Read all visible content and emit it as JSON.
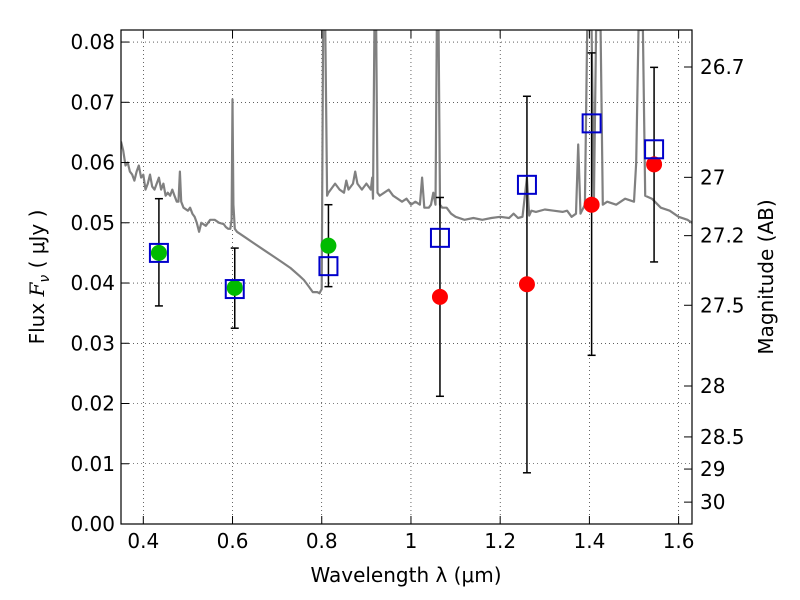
{
  "chart_data": {
    "type": "scatter",
    "xlabel": "Wavelength  λ (μm)",
    "ylabel_prefix": "Flux  ",
    "ylabel_symbol": "F",
    "ylabel_sub": "ν",
    "ylabel_unit": "  ( μJy )",
    "y2label": "Magnitude (AB)",
    "xlim": [
      0.35,
      1.63
    ],
    "ylim": [
      0.0,
      0.082
    ],
    "grid": true,
    "x_ticks": [
      {
        "value": 0.4,
        "label": "0.4"
      },
      {
        "value": 0.6,
        "label": "0.6"
      },
      {
        "value": 0.8,
        "label": "0.8"
      },
      {
        "value": 1.0,
        "label": "1"
      },
      {
        "value": 1.2,
        "label": "1.2"
      },
      {
        "value": 1.4,
        "label": "1.4"
      },
      {
        "value": 1.6,
        "label": "1.6"
      }
    ],
    "y_ticks": [
      {
        "value": 0.0,
        "label": "0.00"
      },
      {
        "value": 0.01,
        "label": "0.01"
      },
      {
        "value": 0.02,
        "label": "0.02"
      },
      {
        "value": 0.03,
        "label": "0.03"
      },
      {
        "value": 0.04,
        "label": "0.04"
      },
      {
        "value": 0.05,
        "label": "0.05"
      },
      {
        "value": 0.06,
        "label": "0.06"
      },
      {
        "value": 0.07,
        "label": "0.07"
      },
      {
        "value": 0.08,
        "label": "0.08"
      }
    ],
    "y2_ticks": [
      {
        "mag": 26.7,
        "label": "26.7"
      },
      {
        "mag": 27.0,
        "label": "27"
      },
      {
        "mag": 27.2,
        "label": "27.2"
      },
      {
        "mag": 27.5,
        "label": "27.5"
      },
      {
        "mag": 28.0,
        "label": "28"
      },
      {
        "mag": 28.5,
        "label": "28.5"
      },
      {
        "mag": 29.0,
        "label": "29"
      },
      {
        "mag": 30.0,
        "label": "30"
      }
    ],
    "model_spectrum": {
      "name": "SED model",
      "color": "#808080",
      "points": [
        [
          0.35,
          0.0635
        ],
        [
          0.355,
          0.062
        ],
        [
          0.36,
          0.0595
        ],
        [
          0.365,
          0.06
        ],
        [
          0.37,
          0.0585
        ],
        [
          0.375,
          0.058
        ],
        [
          0.38,
          0.057
        ],
        [
          0.385,
          0.0585
        ],
        [
          0.39,
          0.0595
        ],
        [
          0.395,
          0.0575
        ],
        [
          0.4,
          0.058
        ],
        [
          0.405,
          0.0555
        ],
        [
          0.41,
          0.0565
        ],
        [
          0.415,
          0.058
        ],
        [
          0.42,
          0.056
        ],
        [
          0.425,
          0.0555
        ],
        [
          0.43,
          0.0565
        ],
        [
          0.435,
          0.0575
        ],
        [
          0.44,
          0.0555
        ],
        [
          0.445,
          0.0565
        ],
        [
          0.45,
          0.0545
        ],
        [
          0.455,
          0.055
        ],
        [
          0.46,
          0.0545
        ],
        [
          0.465,
          0.0555
        ],
        [
          0.47,
          0.0545
        ],
        [
          0.475,
          0.0535
        ],
        [
          0.479,
          0.0535
        ],
        [
          0.482,
          0.0585
        ],
        [
          0.485,
          0.0535
        ],
        [
          0.49,
          0.0525
        ],
        [
          0.5,
          0.052
        ],
        [
          0.505,
          0.0525
        ],
        [
          0.51,
          0.0515
        ],
        [
          0.515,
          0.051
        ],
        [
          0.52,
          0.05
        ],
        [
          0.525,
          0.0485
        ],
        [
          0.53,
          0.05
        ],
        [
          0.54,
          0.0495
        ],
        [
          0.55,
          0.0505
        ],
        [
          0.56,
          0.0505
        ],
        [
          0.57,
          0.05
        ],
        [
          0.58,
          0.0498
        ],
        [
          0.585,
          0.0493
        ],
        [
          0.59,
          0.049
        ],
        [
          0.595,
          0.049
        ],
        [
          0.598,
          0.0505
        ],
        [
          0.6,
          0.0705
        ],
        [
          0.602,
          0.053
        ],
        [
          0.605,
          0.049
        ],
        [
          0.61,
          0.0485
        ],
        [
          0.63,
          0.0475
        ],
        [
          0.65,
          0.0465
        ],
        [
          0.67,
          0.0455
        ],
        [
          0.69,
          0.0445
        ],
        [
          0.71,
          0.0435
        ],
        [
          0.73,
          0.0425
        ],
        [
          0.75,
          0.0412
        ],
        [
          0.76,
          0.0405
        ],
        [
          0.77,
          0.0395
        ],
        [
          0.78,
          0.0385
        ],
        [
          0.79,
          0.0385
        ],
        [
          0.795,
          0.0383
        ],
        [
          0.8,
          0.039
        ],
        [
          0.803,
          0.082
        ],
        [
          0.808,
          0.082
        ],
        [
          0.812,
          0.0545
        ],
        [
          0.815,
          0.055
        ],
        [
          0.82,
          0.0555
        ],
        [
          0.83,
          0.0565
        ],
        [
          0.84,
          0.0555
        ],
        [
          0.85,
          0.055
        ],
        [
          0.855,
          0.057
        ],
        [
          0.86,
          0.0555
        ],
        [
          0.87,
          0.0565
        ],
        [
          0.875,
          0.0585
        ],
        [
          0.88,
          0.0565
        ],
        [
          0.89,
          0.0555
        ],
        [
          0.9,
          0.0565
        ],
        [
          0.91,
          0.0555
        ],
        [
          0.913,
          0.0575
        ],
        [
          0.915,
          0.054
        ],
        [
          0.918,
          0.082
        ],
        [
          0.922,
          0.082
        ],
        [
          0.925,
          0.055
        ],
        [
          0.93,
          0.0545
        ],
        [
          0.94,
          0.055
        ],
        [
          0.95,
          0.0555
        ],
        [
          0.96,
          0.0545
        ],
        [
          0.97,
          0.054
        ],
        [
          0.98,
          0.0535
        ],
        [
          0.99,
          0.054
        ],
        [
          1.0,
          0.053
        ],
        [
          1.01,
          0.0535
        ],
        [
          1.02,
          0.053
        ],
        [
          1.025,
          0.0575
        ],
        [
          1.03,
          0.0525
        ],
        [
          1.04,
          0.0525
        ],
        [
          1.045,
          0.053
        ],
        [
          1.05,
          0.055
        ],
        [
          1.055,
          0.053
        ],
        [
          1.058,
          0.082
        ],
        [
          1.062,
          0.082
        ],
        [
          1.065,
          0.053
        ],
        [
          1.07,
          0.0525
        ],
        [
          1.08,
          0.0525
        ],
        [
          1.09,
          0.0515
        ],
        [
          1.1,
          0.051
        ],
        [
          1.12,
          0.0505
        ],
        [
          1.14,
          0.0508
        ],
        [
          1.16,
          0.0505
        ],
        [
          1.18,
          0.0508
        ],
        [
          1.2,
          0.051
        ],
        [
          1.22,
          0.0508
        ],
        [
          1.23,
          0.0515
        ],
        [
          1.24,
          0.0508
        ],
        [
          1.25,
          0.051
        ],
        [
          1.26,
          0.0575
        ],
        [
          1.265,
          0.0512
        ],
        [
          1.27,
          0.052
        ],
        [
          1.28,
          0.0518
        ],
        [
          1.3,
          0.0522
        ],
        [
          1.32,
          0.052
        ],
        [
          1.34,
          0.0518
        ],
        [
          1.35,
          0.052
        ],
        [
          1.36,
          0.051
        ],
        [
          1.37,
          0.0515
        ],
        [
          1.375,
          0.063
        ],
        [
          1.38,
          0.0515
        ],
        [
          1.39,
          0.053
        ],
        [
          1.395,
          0.082
        ],
        [
          1.405,
          0.082
        ],
        [
          1.41,
          0.0535
        ],
        [
          1.415,
          0.082
        ],
        [
          1.425,
          0.082
        ],
        [
          1.43,
          0.053
        ],
        [
          1.44,
          0.0535
        ],
        [
          1.46,
          0.053
        ],
        [
          1.48,
          0.054
        ],
        [
          1.5,
          0.0535
        ],
        [
          1.505,
          0.06
        ],
        [
          1.51,
          0.082
        ],
        [
          1.52,
          0.082
        ],
        [
          1.525,
          0.0545
        ],
        [
          1.54,
          0.054
        ],
        [
          1.56,
          0.0525
        ],
        [
          1.58,
          0.052
        ],
        [
          1.6,
          0.051
        ],
        [
          1.62,
          0.0505
        ],
        [
          1.63,
          0.05
        ]
      ]
    },
    "green_points": {
      "name": "detected photometry",
      "color": "#00bb00",
      "points": [
        {
          "x": 0.435,
          "y": 0.045,
          "err_low": 0.0362,
          "err_high": 0.054
        },
        {
          "x": 0.605,
          "y": 0.0392,
          "err_low": 0.0325,
          "err_high": 0.0458
        },
        {
          "x": 0.815,
          "y": 0.0462,
          "err_low": 0.0394,
          "err_high": 0.053
        }
      ]
    },
    "red_points": {
      "name": "photometry",
      "color": "#ff0000",
      "points": [
        {
          "x": 1.065,
          "y": 0.0377,
          "err_low": 0.0212,
          "err_high": 0.0542
        },
        {
          "x": 1.26,
          "y": 0.0398,
          "err_low": 0.0085,
          "err_high": 0.071
        },
        {
          "x": 1.405,
          "y": 0.053,
          "err_low": 0.028,
          "err_high": 0.0782
        },
        {
          "x": 1.545,
          "y": 0.0597,
          "err_low": 0.0435,
          "err_high": 0.0758
        }
      ]
    },
    "model_squares": {
      "name": "model photometry",
      "color": "#0000cc",
      "points": [
        {
          "x": 0.435,
          "y": 0.045
        },
        {
          "x": 0.605,
          "y": 0.039
        },
        {
          "x": 0.815,
          "y": 0.0428
        },
        {
          "x": 1.065,
          "y": 0.0475
        },
        {
          "x": 1.26,
          "y": 0.0563
        },
        {
          "x": 1.405,
          "y": 0.0665
        },
        {
          "x": 1.545,
          "y": 0.0622
        }
      ]
    }
  }
}
